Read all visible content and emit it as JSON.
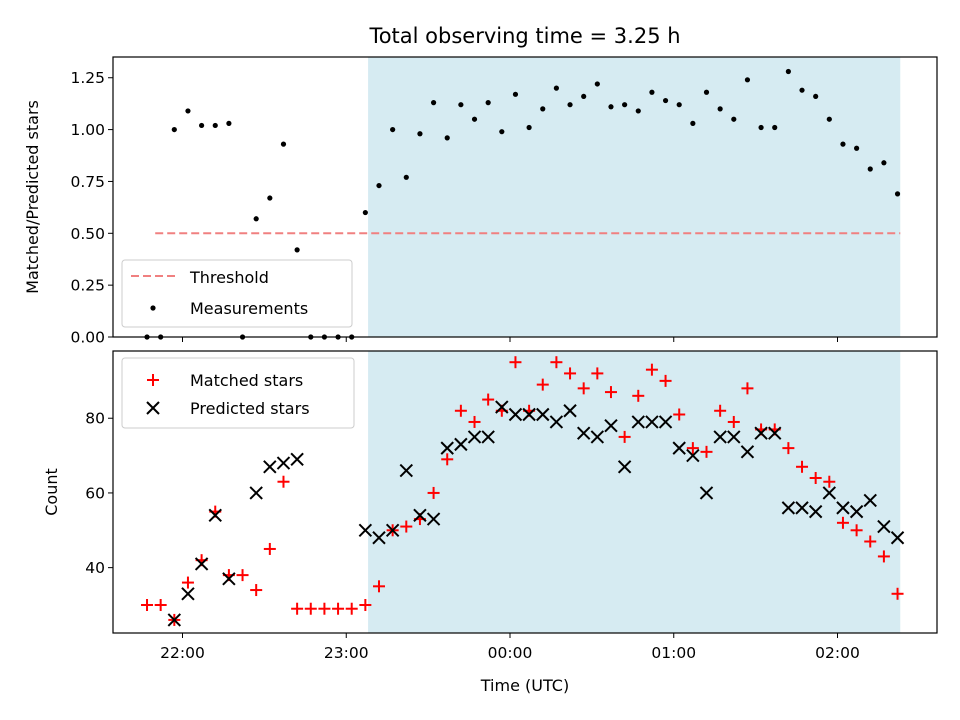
{
  "title": "Total observing time = 3.25 h",
  "xlabel": "Time (UTC)",
  "x_ticks": [
    "22:00",
    "23:00",
    "00:00",
    "01:00",
    "02:00"
  ],
  "colors": {
    "threshold": "#f08080",
    "measurements": "#000000",
    "matched": "#ff0000",
    "predicted": "#000000",
    "shade": "#add8e6"
  },
  "chart_data": [
    {
      "type": "scatter",
      "ylabel": "Matched/Predicted stars",
      "ylim": [
        0,
        1.35
      ],
      "y_ticks": [
        "0.00",
        "0.25",
        "0.50",
        "0.75",
        "1.00",
        "1.25"
      ],
      "shaded_span": [
        "23:08",
        "02:23"
      ],
      "legend": {
        "placement": "lower-left",
        "entries": [
          "Threshold",
          "Measurements"
        ]
      },
      "threshold": {
        "name": "Threshold",
        "y": 0.5,
        "x_range": [
          "21:50",
          "02:23"
        ]
      },
      "series": [
        {
          "name": "Measurements",
          "x": [
            "21:47",
            "21:52",
            "21:57",
            "22:02",
            "22:07",
            "22:12",
            "22:17",
            "22:22",
            "22:27",
            "22:32",
            "22:37",
            "22:42",
            "22:47",
            "22:52",
            "22:57",
            "23:02",
            "23:07",
            "23:12",
            "23:17",
            "23:22",
            "23:27",
            "23:32",
            "23:37",
            "23:42",
            "23:47",
            "23:52",
            "23:57",
            "00:02",
            "00:07",
            "00:12",
            "00:17",
            "00:22",
            "00:27",
            "00:32",
            "00:37",
            "00:42",
            "00:47",
            "00:52",
            "00:57",
            "01:02",
            "01:07",
            "01:12",
            "01:17",
            "01:22",
            "01:27",
            "01:32",
            "01:37",
            "01:42",
            "01:47",
            "01:52",
            "01:57",
            "02:02",
            "02:07",
            "02:12",
            "02:17",
            "02:22"
          ],
          "y": [
            0,
            0,
            1.0,
            1.09,
            1.02,
            1.02,
            1.03,
            0,
            0.57,
            0.67,
            0.93,
            0.42,
            0,
            0,
            0,
            0,
            0.6,
            0.73,
            1.0,
            0.77,
            0.98,
            1.13,
            0.96,
            1.12,
            1.05,
            1.13,
            0.99,
            1.17,
            1.01,
            1.1,
            1.2,
            1.12,
            1.16,
            1.22,
            1.11,
            1.12,
            1.09,
            1.18,
            1.14,
            1.12,
            1.03,
            1.18,
            1.1,
            1.05,
            1.24,
            1.01,
            1.01,
            1.28,
            1.19,
            1.16,
            1.05,
            0.93,
            0.91,
            0.81,
            0.84,
            0.69
          ]
        }
      ]
    },
    {
      "type": "scatter",
      "ylabel": "Count",
      "ylim": [
        22.5,
        98
      ],
      "y_ticks": [
        "40",
        "60",
        "80"
      ],
      "shaded_span": [
        "23:08",
        "02:23"
      ],
      "legend": {
        "placement": "upper-left",
        "entries": [
          "Matched stars",
          "Predicted stars"
        ]
      },
      "x": [
        "21:47",
        "21:52",
        "21:57",
        "22:02",
        "22:07",
        "22:12",
        "22:17",
        "22:22",
        "22:27",
        "22:32",
        "22:37",
        "22:42",
        "22:47",
        "22:52",
        "22:57",
        "23:02",
        "23:07",
        "23:12",
        "23:17",
        "23:22",
        "23:27",
        "23:32",
        "23:37",
        "23:42",
        "23:47",
        "23:52",
        "23:57",
        "00:02",
        "00:07",
        "00:12",
        "00:17",
        "00:22",
        "00:27",
        "00:32",
        "00:37",
        "00:42",
        "00:47",
        "00:52",
        "00:57",
        "01:02",
        "01:07",
        "01:12",
        "01:17",
        "01:22",
        "01:27",
        "01:32",
        "01:37",
        "01:42",
        "01:47",
        "01:52",
        "01:57",
        "02:02",
        "02:07",
        "02:12",
        "02:17",
        "02:22"
      ],
      "series": [
        {
          "name": "Matched stars",
          "y": [
            30,
            30,
            26,
            36,
            42,
            55,
            38,
            38,
            34,
            45,
            63,
            29,
            29,
            29,
            29,
            29,
            30,
            35,
            50,
            51,
            53,
            60,
            69,
            82,
            79,
            85,
            82,
            95,
            82,
            89,
            95,
            92,
            88,
            92,
            87,
            75,
            86,
            93,
            90,
            81,
            72,
            71,
            82,
            79,
            88,
            77,
            77,
            72,
            67,
            64,
            63,
            52,
            50,
            47,
            43,
            33
          ]
        },
        {
          "name": "Predicted stars",
          "x": [
            "21:57",
            "22:02",
            "22:07",
            "22:12",
            "22:17",
            "22:27",
            "22:32",
            "22:37",
            "22:42",
            "23:07",
            "23:12",
            "23:17",
            "23:22",
            "23:27",
            "23:32",
            "23:37",
            "23:42",
            "23:47",
            "23:52",
            "23:57",
            "00:02",
            "00:07",
            "00:12",
            "00:17",
            "00:22",
            "00:27",
            "00:32",
            "00:37",
            "00:42",
            "00:47",
            "00:52",
            "00:57",
            "01:02",
            "01:07",
            "01:12",
            "01:17",
            "01:22",
            "01:27",
            "01:32",
            "01:37",
            "01:42",
            "01:47",
            "01:52",
            "01:57",
            "02:02",
            "02:07",
            "02:12",
            "02:17",
            "02:22"
          ],
          "y": [
            26,
            33,
            41,
            54,
            37,
            60,
            67,
            68,
            69,
            50,
            48,
            50,
            66,
            54,
            53,
            72,
            73,
            75,
            75,
            83,
            81,
            81,
            81,
            79,
            82,
            76,
            75,
            78,
            67,
            79,
            79,
            79,
            72,
            70,
            60,
            75,
            75,
            71,
            76,
            76,
            56,
            56,
            55,
            60,
            56,
            55,
            58,
            51,
            48
          ]
        }
      ]
    }
  ]
}
